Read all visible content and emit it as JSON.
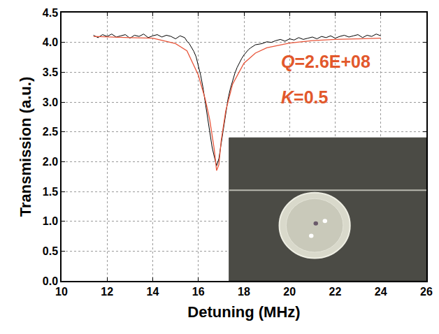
{
  "chart_data": {
    "type": "line",
    "x_label": "Detuning (MHz)",
    "y_label": "Transmission (a.u.)",
    "xlim": [
      10,
      26
    ],
    "xticks": [
      10,
      12,
      14,
      16,
      18,
      20,
      22,
      24,
      26
    ],
    "ylim": [
      0,
      4.5
    ],
    "yticks": [
      {
        "value": 0,
        "label": "0.0"
      },
      0.5,
      {
        "value": 1,
        "label": "1.0"
      },
      1.5,
      {
        "value": 2,
        "label": "2.0"
      },
      2.5,
      {
        "value": 3,
        "label": "3.0"
      },
      3.5,
      {
        "value": 4,
        "label": "4.0"
      },
      4.5
    ],
    "grid": true,
    "series": [
      {
        "color": "#000000",
        "x": [
          11.4,
          11.6,
          11.8,
          12.0,
          12.2,
          12.4,
          12.6,
          12.8,
          13.0,
          13.2,
          13.4,
          13.6,
          13.8,
          14.0,
          14.2,
          14.4,
          14.6,
          14.8,
          15.0,
          15.2,
          15.4,
          15.5,
          15.6,
          15.7,
          15.8,
          15.9,
          16.0,
          16.1,
          16.2,
          16.3,
          16.4,
          16.5,
          16.6,
          16.7,
          16.8,
          16.9,
          17.0,
          17.1,
          17.2,
          17.3,
          17.4,
          17.5,
          17.6,
          17.7,
          17.8,
          17.9,
          18.0,
          18.1,
          18.2,
          18.3,
          18.4,
          18.5,
          18.8,
          19.0,
          19.2,
          19.4,
          19.6,
          19.8,
          20.0,
          20.2,
          20.4,
          20.6,
          20.8,
          21.0,
          21.2,
          21.4,
          21.6,
          21.8,
          22.0,
          22.2,
          22.4,
          22.6,
          22.8,
          23.0,
          23.2,
          23.4,
          23.6,
          23.8,
          24.0
        ],
        "values": [
          4.12,
          4.08,
          4.13,
          4.1,
          4.14,
          4.09,
          4.11,
          4.13,
          4.07,
          4.12,
          4.1,
          4.14,
          4.08,
          4.11,
          4.13,
          4.09,
          4.12,
          4.1,
          4.06,
          4.11,
          4.08,
          4.02,
          3.98,
          3.92,
          3.85,
          3.76,
          3.62,
          3.45,
          3.25,
          3.0,
          2.75,
          2.5,
          2.25,
          2.08,
          1.93,
          2.05,
          2.3,
          2.6,
          2.85,
          3.05,
          3.22,
          3.36,
          3.48,
          3.58,
          3.66,
          3.73,
          3.79,
          3.84,
          3.88,
          3.91,
          3.94,
          3.96,
          3.98,
          4.01,
          4.0,
          4.03,
          4.05,
          4.02,
          4.06,
          4.04,
          4.08,
          4.05,
          4.07,
          4.09,
          4.06,
          4.1,
          4.08,
          4.11,
          4.07,
          4.1,
          4.12,
          4.09,
          4.11,
          4.13,
          4.08,
          4.12,
          4.1,
          4.14,
          4.11
        ]
      },
      {
        "color": "#e8553a",
        "x": [
          11.4,
          12,
          13,
          14,
          15,
          15.5,
          16,
          16.3,
          16.5,
          16.7,
          16.8,
          16.9,
          17.0,
          17.2,
          17.5,
          18,
          18.5,
          19,
          20,
          21,
          22,
          23,
          24
        ],
        "values": [
          4.1,
          4.09,
          4.08,
          4.07,
          3.98,
          3.86,
          3.45,
          3.05,
          2.7,
          2.2,
          1.85,
          1.95,
          2.35,
          2.85,
          3.3,
          3.65,
          3.82,
          3.91,
          3.99,
          4.03,
          4.05,
          4.06,
          4.07
        ]
      }
    ],
    "annotations": [
      {
        "text": "Q=2.6E+08",
        "x": 19.55,
        "y": 3.68,
        "color": "#e2582c"
      },
      {
        "text": "K=0.5",
        "x": 19.55,
        "y": 3.08,
        "color": "#e2582c"
      }
    ]
  }
}
